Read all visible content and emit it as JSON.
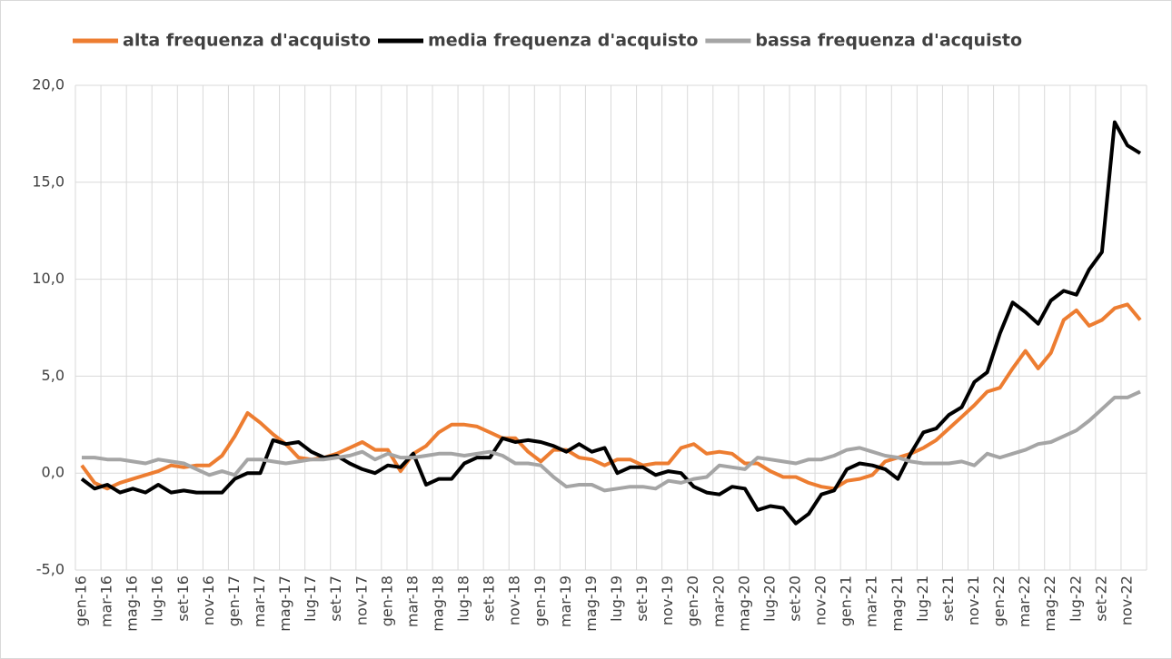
{
  "chart_data": {
    "type": "line",
    "categories": [
      "gen-16",
      null,
      "mar-16",
      null,
      "mag-16",
      null,
      "lug-16",
      null,
      "set-16",
      null,
      "nov-16",
      null,
      "gen-17",
      null,
      "mar-17",
      null,
      "mag-17",
      null,
      "lug-17",
      null,
      "set-17",
      null,
      "nov-17",
      null,
      "gen-18",
      null,
      "mar-18",
      null,
      "mag-18",
      null,
      "lug-18",
      null,
      "set-18",
      null,
      "nov-18",
      null,
      "gen-19",
      null,
      "mar-19",
      null,
      "mag-19",
      null,
      "lug-19",
      null,
      "set-19",
      null,
      "nov-19",
      null,
      "gen-20",
      null,
      "mar-20",
      null,
      "mag-20",
      null,
      "lug-20",
      null,
      "set-20",
      null,
      "nov-20",
      null,
      "gen-21",
      null,
      "mar-21",
      null,
      "mag-21",
      null,
      "lug-21",
      null,
      "set-21",
      null,
      "nov-21",
      null,
      "gen-22",
      null,
      "mar-22",
      null,
      "mag-22",
      null,
      "lug-22",
      null,
      "set-22",
      null,
      "nov-22",
      null
    ],
    "series": [
      {
        "name": "alta frequenza d'acquisto",
        "color": "#ed7d31",
        "values": [
          0.4,
          -0.5,
          -0.8,
          -0.5,
          -0.3,
          -0.1,
          0.1,
          0.4,
          0.3,
          0.4,
          0.4,
          0.9,
          1.9,
          3.1,
          2.6,
          2.0,
          1.5,
          0.8,
          0.7,
          0.8,
          1.0,
          1.3,
          1.6,
          1.2,
          1.2,
          0.1,
          1.0,
          1.4,
          2.1,
          2.5,
          2.5,
          2.4,
          2.1,
          1.8,
          1.8,
          1.1,
          0.6,
          1.2,
          1.2,
          0.8,
          0.7,
          0.4,
          0.7,
          0.7,
          0.4,
          0.5,
          0.5,
          1.3,
          1.5,
          1.0,
          1.1,
          1.0,
          0.5,
          0.5,
          0.1,
          -0.2,
          -0.2,
          -0.5,
          -0.7,
          -0.8,
          -0.4,
          -0.3,
          -0.1,
          0.6,
          0.8,
          1.0,
          1.3,
          1.7,
          2.3,
          2.9,
          3.5,
          4.2,
          4.4,
          5.4,
          6.3,
          5.4,
          6.2,
          7.9,
          8.4,
          7.6,
          7.9,
          8.5,
          8.7,
          7.9
        ]
      },
      {
        "name": "media frequenza d'acquisto",
        "color": "#000000",
        "values": [
          -0.3,
          -0.8,
          -0.6,
          -1.0,
          -0.8,
          -1.0,
          -0.6,
          -1.0,
          -0.9,
          -1.0,
          -1.0,
          -1.0,
          -0.3,
          0.0,
          0.0,
          1.7,
          1.5,
          1.6,
          1.1,
          0.8,
          0.9,
          0.5,
          0.2,
          0.0,
          0.4,
          0.3,
          1.0,
          -0.6,
          -0.3,
          -0.3,
          0.5,
          0.8,
          0.8,
          1.8,
          1.6,
          1.7,
          1.6,
          1.4,
          1.1,
          1.5,
          1.1,
          1.3,
          0.0,
          0.3,
          0.3,
          -0.1,
          0.1,
          0.0,
          -0.7,
          -1.0,
          -1.1,
          -0.7,
          -0.8,
          -1.9,
          -1.7,
          -1.8,
          -2.6,
          -2.1,
          -1.1,
          -0.9,
          0.2,
          0.5,
          0.4,
          0.2,
          -0.3,
          1.0,
          2.1,
          2.3,
          3.0,
          3.4,
          4.7,
          5.2,
          7.2,
          8.8,
          8.3,
          7.7,
          8.9,
          9.4,
          9.2,
          10.5,
          11.4,
          18.1,
          16.9,
          16.5
        ]
      },
      {
        "name": "bassa frequenza d'acquisto",
        "color": "#a5a5a5",
        "values": [
          0.8,
          0.8,
          0.7,
          0.7,
          0.6,
          0.5,
          0.7,
          0.6,
          0.5,
          0.2,
          -0.1,
          0.1,
          -0.1,
          0.7,
          0.7,
          0.6,
          0.5,
          0.6,
          0.7,
          0.7,
          0.8,
          0.9,
          1.1,
          0.7,
          1.0,
          0.8,
          0.8,
          0.9,
          1.0,
          1.0,
          0.9,
          1.0,
          1.1,
          0.9,
          0.5,
          0.5,
          0.4,
          -0.2,
          -0.7,
          -0.6,
          -0.6,
          -0.9,
          -0.8,
          -0.7,
          -0.7,
          -0.8,
          -0.4,
          -0.5,
          -0.3,
          -0.2,
          0.4,
          0.3,
          0.2,
          0.8,
          0.7,
          0.6,
          0.5,
          0.7,
          0.7,
          0.9,
          1.2,
          1.3,
          1.1,
          0.9,
          0.8,
          0.6,
          0.5,
          0.5,
          0.5,
          0.6,
          0.4,
          1.0,
          0.8,
          1.0,
          1.2,
          1.5,
          1.6,
          1.9,
          2.2,
          2.7,
          3.3,
          3.9,
          3.9,
          4.2
        ]
      }
    ],
    "ylim": [
      -5,
      20
    ],
    "yticks": [
      {
        "value": -5,
        "label": "-5,0"
      },
      {
        "value": 0,
        "label": "0,0"
      },
      {
        "value": 5,
        "label": "5,0"
      },
      {
        "value": 10,
        "label": "10,0"
      },
      {
        "value": 15,
        "label": "15,0"
      },
      {
        "value": 20,
        "label": "20,0"
      }
    ],
    "grid": true,
    "legend": "top"
  }
}
